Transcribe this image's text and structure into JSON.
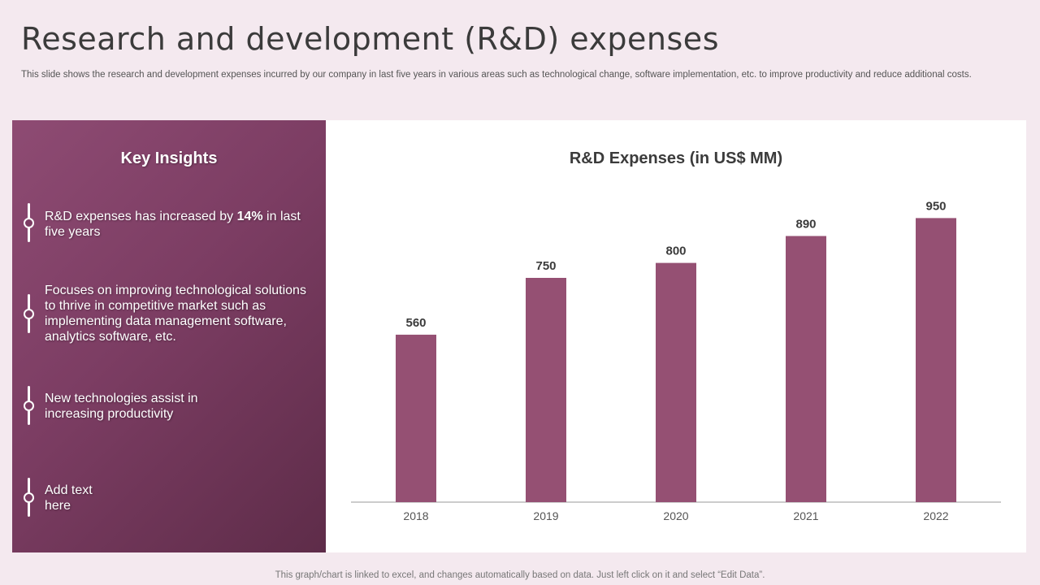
{
  "page": {
    "title": "Research and development (R&D) expenses",
    "subtitle": "This slide shows the research and development expenses incurred by our company in last five years in various areas such as technological change, software implementation, etc. to improve productivity and reduce additional costs.",
    "footer": "This graph/chart is linked to excel, and changes automatically based on data. Just left click on it and select “Edit Data”."
  },
  "insights": {
    "heading": "Key Insights",
    "items": [
      {
        "pre": "R&D expenses has increased by ",
        "bold": "14%",
        "post": " in last five years"
      },
      {
        "text": "Focuses on improving technological solutions to thrive in competitive market such as implementing data management software, analytics software, etc."
      },
      {
        "text": "New technologies assist in increasing productivity"
      },
      {
        "text": "Add text here"
      }
    ]
  },
  "colors": {
    "bar": "#955073",
    "axis": "#999999",
    "label": "#3b3b3b",
    "tick": "#555555"
  },
  "chart_data": {
    "type": "bar",
    "title": "R&D Expenses (in US$ MM)",
    "categories": [
      "2018",
      "2019",
      "2020",
      "2021",
      "2022"
    ],
    "values": [
      560,
      750,
      800,
      890,
      950
    ],
    "xlabel": "",
    "ylabel": "",
    "ylim": [
      0,
      1000
    ],
    "grid": false,
    "legend": "none",
    "data_labels": true
  }
}
